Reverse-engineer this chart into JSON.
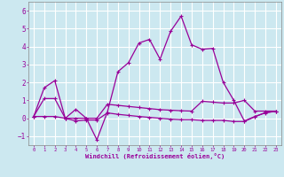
{
  "xlabel": "Windchill (Refroidissement éolien,°C)",
  "background_color": "#cce8f0",
  "grid_color": "#ffffff",
  "line_color": "#990099",
  "xlim": [
    -0.5,
    23.5
  ],
  "ylim": [
    -1.5,
    6.5
  ],
  "xticks": [
    0,
    1,
    2,
    3,
    4,
    5,
    6,
    7,
    8,
    9,
    10,
    11,
    12,
    13,
    14,
    15,
    16,
    17,
    18,
    19,
    20,
    21,
    22,
    23
  ],
  "yticks": [
    -1,
    0,
    1,
    2,
    3,
    4,
    5,
    6
  ],
  "series1_x": [
    0,
    1,
    2,
    3,
    4,
    5,
    6,
    7,
    8,
    9,
    10,
    11,
    12,
    13,
    14,
    15,
    16,
    17,
    18,
    19,
    20,
    21,
    22,
    23
  ],
  "series1_y": [
    0.1,
    1.7,
    2.1,
    0.0,
    0.5,
    0.0,
    -1.2,
    0.35,
    2.6,
    3.1,
    4.2,
    4.4,
    3.3,
    4.85,
    5.7,
    4.1,
    3.85,
    3.9,
    2.0,
    1.0,
    -0.15,
    0.1,
    0.3,
    0.4
  ],
  "series2_x": [
    0,
    1,
    2,
    3,
    4,
    5,
    6,
    7,
    8,
    9,
    10,
    11,
    12,
    13,
    14,
    15,
    16,
    17,
    18,
    19,
    20,
    21,
    22,
    23
  ],
  "series2_y": [
    0.1,
    1.1,
    1.1,
    0.0,
    0.0,
    0.0,
    0.0,
    0.78,
    0.72,
    0.66,
    0.6,
    0.54,
    0.48,
    0.45,
    0.42,
    0.4,
    0.95,
    0.9,
    0.85,
    0.85,
    1.0,
    0.4,
    0.4,
    0.4
  ],
  "series3_x": [
    0,
    1,
    2,
    3,
    4,
    5,
    6,
    7,
    8,
    9,
    10,
    11,
    12,
    13,
    14,
    15,
    16,
    17,
    18,
    19,
    20,
    21,
    22,
    23
  ],
  "series3_y": [
    0.1,
    0.1,
    0.1,
    0.0,
    -0.15,
    -0.1,
    -0.1,
    0.3,
    0.22,
    0.16,
    0.1,
    0.05,
    0.0,
    -0.05,
    -0.08,
    -0.08,
    -0.12,
    -0.12,
    -0.12,
    -0.18,
    -0.18,
    0.08,
    0.32,
    0.38
  ]
}
